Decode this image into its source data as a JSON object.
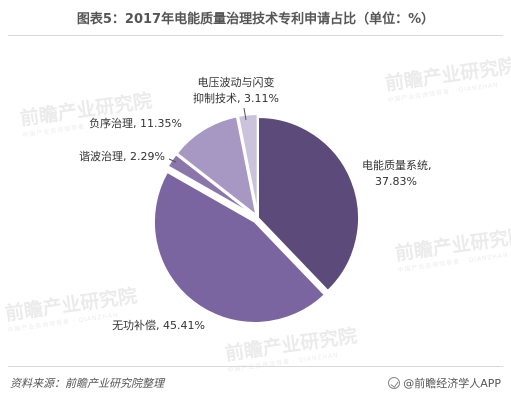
{
  "title": "图表5：2017年电能质量治理技术专利申请占比（单位：%）",
  "source": "资料来源：前瞻产业研究院整理",
  "brand": "@前瞻经济学人APP",
  "watermark": {
    "text": "前瞻产业研究院",
    "subtext": "中国产业咨询领导者 · QIANZHAN"
  },
  "chart_data": {
    "type": "pie",
    "title": "图表5：2017年电能质量治理技术专利申请占比（单位：%）",
    "unit": "%",
    "start_angle": "12 o'clock, clockwise",
    "slices": [
      {
        "name": "电能质量系统",
        "value": 37.83,
        "value_label": "37.83%",
        "color": "#5c4a7a"
      },
      {
        "name": "无功补偿",
        "value": 45.41,
        "value_label": "45.41%",
        "color": "#7a65a0"
      },
      {
        "name": "谐波治理",
        "value": 2.29,
        "value_label": "2.29%",
        "color": "#8a76ab"
      },
      {
        "name": "负序治理",
        "value": 11.35,
        "value_label": "11.35%",
        "color": "#a698c3"
      },
      {
        "name": "电压波动与闪变抑制技术",
        "value": 3.11,
        "value_label": "3.11%",
        "color": "#cbc3dc"
      }
    ],
    "labels": [
      {
        "line1": "电能质量系统,",
        "line2": "37.83%"
      },
      {
        "line1": "无功补偿, 45.41%"
      },
      {
        "line1": "谐波治理, 2.29%"
      },
      {
        "line1": "负序治理, 11.35%"
      },
      {
        "line1": "电压波动与闪变",
        "line2": "抑制技术, 3.11%"
      }
    ]
  }
}
